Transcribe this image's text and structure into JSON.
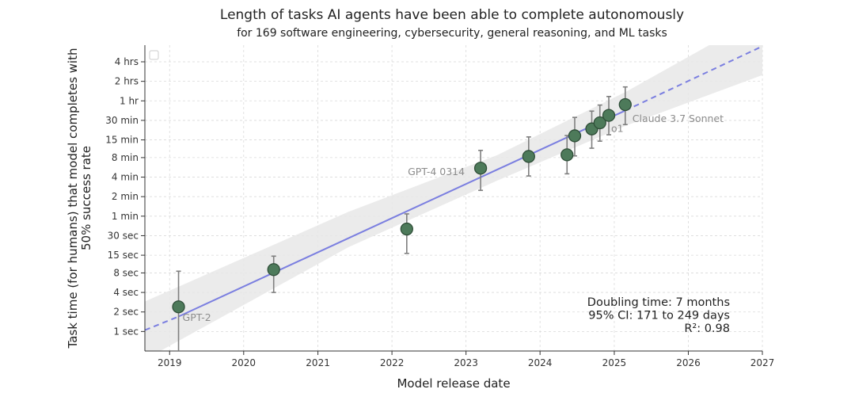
{
  "chart_data": {
    "type": "scatter",
    "title": "Length of tasks AI agents have been able to complete autonomously",
    "subtitle": "for 169 software engineering, cybersecurity, general reasoning, and ML tasks",
    "xlabel": "Model release date",
    "ylabel_lines": [
      "Task time (for humans) that model completes with",
      "50% success rate"
    ],
    "x_scale": "date",
    "y_scale": "log",
    "xlim": [
      "2018-09-01",
      "2027-01-01"
    ],
    "ylim_seconds": [
      0.5,
      26000
    ],
    "x_ticks": [
      {
        "value": "2019-01-01",
        "label": "2019"
      },
      {
        "value": "2020-01-01",
        "label": "2020"
      },
      {
        "value": "2021-01-01",
        "label": "2021"
      },
      {
        "value": "2022-01-01",
        "label": "2022"
      },
      {
        "value": "2023-01-01",
        "label": "2023"
      },
      {
        "value": "2024-01-01",
        "label": "2024"
      },
      {
        "value": "2025-01-01",
        "label": "2025"
      },
      {
        "value": "2026-01-01",
        "label": "2026"
      },
      {
        "value": "2027-01-01",
        "label": "2027"
      }
    ],
    "y_ticks": [
      {
        "seconds": 1,
        "label": "1 sec"
      },
      {
        "seconds": 2,
        "label": "2 sec"
      },
      {
        "seconds": 4,
        "label": "4 sec"
      },
      {
        "seconds": 8,
        "label": "8 sec"
      },
      {
        "seconds": 15,
        "label": "15 sec"
      },
      {
        "seconds": 30,
        "label": "30 sec"
      },
      {
        "seconds": 60,
        "label": "1 min"
      },
      {
        "seconds": 120,
        "label": "2 min"
      },
      {
        "seconds": 240,
        "label": "4 min"
      },
      {
        "seconds": 480,
        "label": "8 min"
      },
      {
        "seconds": 900,
        "label": "15 min"
      },
      {
        "seconds": 1800,
        "label": "30 min"
      },
      {
        "seconds": 3600,
        "label": "1 hr"
      },
      {
        "seconds": 7200,
        "label": "2 hrs"
      },
      {
        "seconds": 14400,
        "label": "4 hrs"
      }
    ],
    "grid": true,
    "points": [
      {
        "date": "2019-02-14",
        "seconds": 2.4,
        "ci_low": 0.35,
        "ci_high": 8.5,
        "label": "GPT-2"
      },
      {
        "date": "2020-05-28",
        "seconds": 9.0,
        "ci_low": 4.0,
        "ci_high": 14.5,
        "label": ""
      },
      {
        "date": "2022-03-15",
        "seconds": 38,
        "ci_low": 16,
        "ci_high": 65,
        "label": ""
      },
      {
        "date": "2023-03-14",
        "seconds": 330,
        "ci_low": 150,
        "ci_high": 620,
        "label": "GPT-4 0314"
      },
      {
        "date": "2023-11-06",
        "seconds": 500,
        "ci_low": 250,
        "ci_high": 1000,
        "label": ""
      },
      {
        "date": "2024-05-13",
        "seconds": 530,
        "ci_low": 270,
        "ci_high": 1050,
        "label": ""
      },
      {
        "date": "2024-06-20",
        "seconds": 1040,
        "ci_low": 510,
        "ci_high": 2000,
        "label": ""
      },
      {
        "date": "2024-09-12",
        "seconds": 1330,
        "ci_low": 670,
        "ci_high": 2500,
        "label": ""
      },
      {
        "date": "2024-10-22",
        "seconds": 1650,
        "ci_low": 860,
        "ci_high": 3100,
        "label": ""
      },
      {
        "date": "2024-12-05",
        "seconds": 2150,
        "ci_low": 1080,
        "ci_high": 4200,
        "label": "o1"
      },
      {
        "date": "2025-02-24",
        "seconds": 3150,
        "ci_low": 1550,
        "ci_high": 5900,
        "label": "Claude 3.7 Sonnet"
      }
    ],
    "trend": {
      "solid_from": {
        "date": "2019-02-14",
        "seconds": 1.7
      },
      "solid_to": {
        "date": "2025-02-24",
        "seconds": 2550
      },
      "dashed_before": {
        "date": "2018-09-01",
        "seconds": 1.05
      },
      "dashed_after": {
        "date": "2027-01-01",
        "seconds": 25000
      }
    },
    "ci_band": [
      {
        "date": "2018-09-01",
        "lower": 0.37,
        "upper": 2.9
      },
      {
        "date": "2021-06-01",
        "lower": 20,
        "upper": 70
      },
      {
        "date": "2023-06-01",
        "lower": 210,
        "upper": 520
      },
      {
        "date": "2025-03-01",
        "lower": 1500,
        "upper": 5000
      },
      {
        "date": "2027-01-01",
        "lower": 9000,
        "upper": 75000
      }
    ],
    "annotations": [
      "Doubling time: 7 months",
      "95% CI: 171 to 249 days",
      "R²: 0.98"
    ],
    "colors": {
      "point_fill": "#4d7a5a",
      "point_stroke": "#2f4e38",
      "error_bar": "#7f7f7f",
      "trend_line": "#7b7fe0",
      "ci_band": "#e8e8e8",
      "grid": "#d9d9d9",
      "axis": "#333333",
      "point_label": "#8c8c8c"
    },
    "legend": {
      "placement": "top-left",
      "entries": []
    }
  }
}
